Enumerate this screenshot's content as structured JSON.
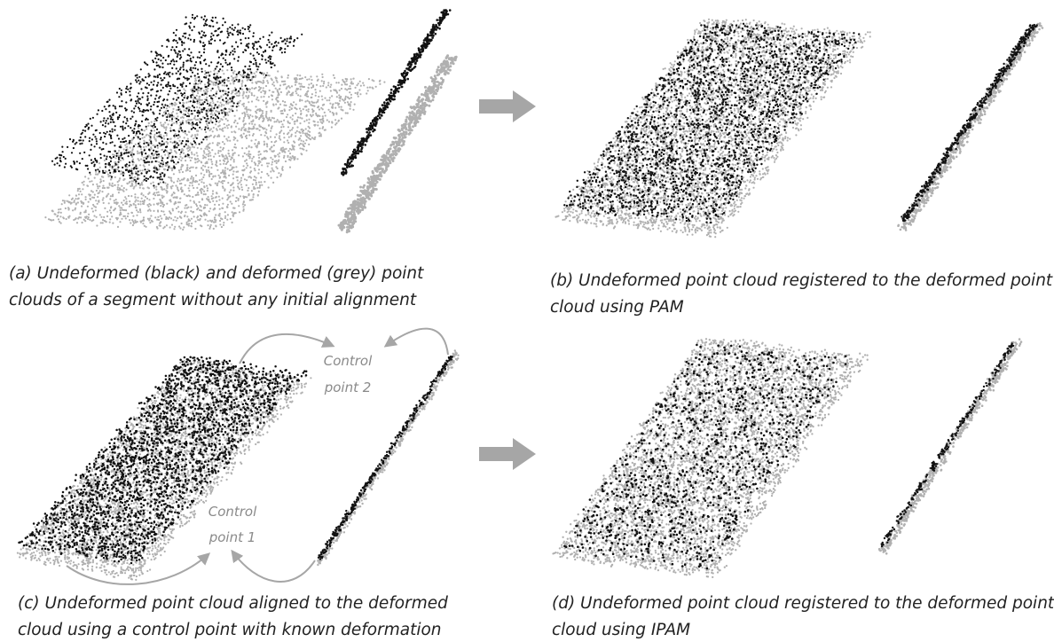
{
  "panels": [
    {
      "caption": [
        "(a) Undeformed (black) and deformed (grey) point",
        "clouds of a segment without any initial alignment"
      ]
    },
    {
      "caption": [
        "(b) Undeformed point cloud registered to the deformed point",
        "cloud using PAM"
      ]
    },
    {
      "caption": [
        "(c) Undeformed point cloud aligned to the deformed",
        "cloud using a control point with known deformation"
      ]
    },
    {
      "caption": [
        "(d) Undeformed point cloud registered to the deformed point",
        "cloud using IPAM"
      ]
    }
  ],
  "annotations": [
    {
      "lines": [
        "Control",
        "point 2"
      ]
    },
    {
      "lines": [
        "Control",
        "point 1"
      ]
    }
  ]
}
